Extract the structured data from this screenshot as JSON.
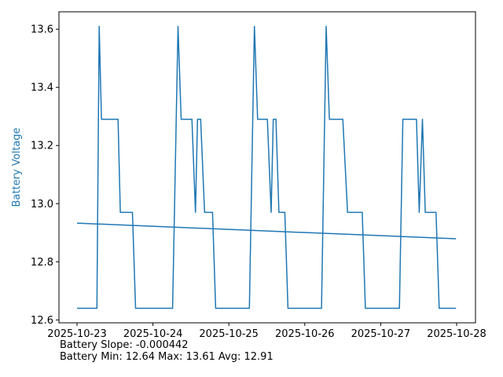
{
  "colors": {
    "series": "#1f77b4",
    "axis": "#000000",
    "ylabel": "#1f77b4"
  },
  "stats": {
    "slope_text": "Battery Slope: -0.000442",
    "range_text": "Battery Min: 12.64 Max: 13.61 Avg: 12.91"
  },
  "chart_data": {
    "type": "line",
    "title": "",
    "xlabel": "",
    "ylabel": "Battery Voltage",
    "xlim": [
      "2025-10-23T00:00",
      "2025-10-28T00:00"
    ],
    "ylim": [
      12.59,
      13.66
    ],
    "x_ticks": [
      "2025-10-23",
      "2025-10-24",
      "2025-10-25",
      "2025-10-26",
      "2025-10-27",
      "2025-10-28"
    ],
    "y_ticks": [
      12.6,
      12.8,
      13.0,
      13.2,
      13.4,
      13.6
    ],
    "grid": false,
    "series": [
      {
        "style": "step",
        "points": [
          [
            "2025-10-23T00:00",
            12.64
          ],
          [
            "2025-10-23T06:17",
            12.64
          ],
          [
            "2025-10-23T07:00",
            13.61
          ],
          [
            "2025-10-23T07:43",
            13.29
          ],
          [
            "2025-10-23T12:58",
            13.29
          ],
          [
            "2025-10-23T13:41",
            12.97
          ],
          [
            "2025-10-23T17:31",
            12.97
          ],
          [
            "2025-10-23T18:31",
            12.64
          ],
          [
            "2025-10-24T06:12",
            12.64
          ],
          [
            "2025-10-24T07:55",
            13.61
          ],
          [
            "2025-10-24T08:55",
            13.29
          ],
          [
            "2025-10-24T12:19",
            13.29
          ],
          [
            "2025-10-24T13:26",
            12.97
          ],
          [
            "2025-10-24T14:05",
            13.29
          ],
          [
            "2025-10-24T15:05",
            13.29
          ],
          [
            "2025-10-24T16:19",
            12.97
          ],
          [
            "2025-10-24T18:50",
            12.97
          ],
          [
            "2025-10-24T19:50",
            12.64
          ],
          [
            "2025-10-25T06:29",
            12.64
          ],
          [
            "2025-10-25T08:05",
            13.61
          ],
          [
            "2025-10-25T09:05",
            13.29
          ],
          [
            "2025-10-25T12:10",
            13.29
          ],
          [
            "2025-10-25T13:22",
            12.97
          ],
          [
            "2025-10-25T14:02",
            13.29
          ],
          [
            "2025-10-25T14:53",
            13.29
          ],
          [
            "2025-10-25T15:50",
            12.97
          ],
          [
            "2025-10-25T17:41",
            12.97
          ],
          [
            "2025-10-25T18:41",
            12.64
          ],
          [
            "2025-10-26T05:17",
            12.64
          ],
          [
            "2025-10-26T06:46",
            13.61
          ],
          [
            "2025-10-26T07:46",
            13.29
          ],
          [
            "2025-10-26T12:02",
            13.29
          ],
          [
            "2025-10-26T13:31",
            12.97
          ],
          [
            "2025-10-26T18:10",
            12.97
          ],
          [
            "2025-10-26T19:10",
            12.64
          ],
          [
            "2025-10-27T05:55",
            12.64
          ],
          [
            "2025-10-27T07:00",
            13.29
          ],
          [
            "2025-10-27T11:19",
            13.29
          ],
          [
            "2025-10-27T12:10",
            12.97
          ],
          [
            "2025-10-27T13:12",
            13.29
          ],
          [
            "2025-10-27T14:05",
            12.97
          ],
          [
            "2025-10-27T17:29",
            12.97
          ],
          [
            "2025-10-27T18:29",
            12.64
          ],
          [
            "2025-10-27T23:48",
            12.64
          ]
        ]
      },
      {
        "style": "trend",
        "points": [
          [
            "2025-10-23T00:00",
            12.933
          ],
          [
            "2025-10-27T23:48",
            12.879
          ]
        ]
      }
    ]
  }
}
